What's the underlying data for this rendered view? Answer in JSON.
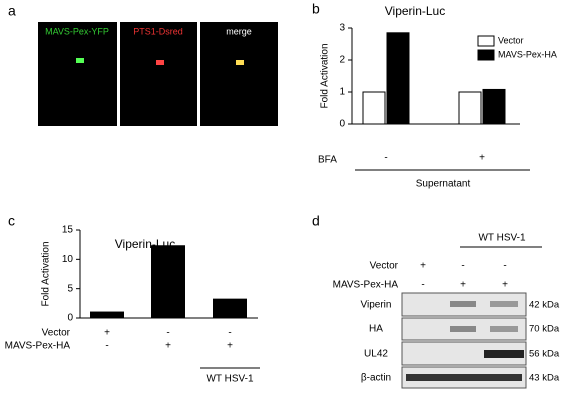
{
  "panel_labels": [
    "a",
    "b",
    "c",
    "d"
  ],
  "microscopy": {
    "channels": [
      "MAVS-Pex-YFP",
      "PTS1-Dsred",
      "merge"
    ]
  },
  "chart_data": [
    {
      "type": "bar",
      "title": "Viperin-Luc",
      "y_label": "Fold Activation",
      "categories": [
        "-",
        "+"
      ],
      "x_row_label": "BFA",
      "x_group_label": "Supernatant",
      "series": [
        {
          "name": "Vector",
          "color": "#ffffff",
          "values": [
            1,
            1
          ]
        },
        {
          "name": "MAVS-Pex-HA",
          "color": "#000000",
          "values": [
            2.85,
            1.08
          ]
        }
      ],
      "ylim": [
        0,
        3
      ],
      "yticks": [
        0,
        1,
        2,
        3
      ],
      "legend": "top-right"
    },
    {
      "type": "bar",
      "title": "Viperin-Luc",
      "y_label": "Fold Activation",
      "categories": [
        null,
        null,
        null
      ],
      "values": [
        1.1,
        12.4,
        3.3
      ],
      "color": "#000000",
      "rows": [
        {
          "name": "Vector",
          "signs": [
            "+",
            "-",
            "-"
          ]
        },
        {
          "name": "MAVS-Pex-HA",
          "signs": [
            "-",
            "+",
            "+"
          ]
        }
      ],
      "group_label": "WT HSV-1",
      "ylim": [
        0,
        15
      ],
      "yticks": [
        0,
        5,
        10,
        15
      ]
    }
  ],
  "western_blot": {
    "group_label": "WT HSV-1",
    "rows": [
      {
        "name": "Vector",
        "signs": [
          "+",
          "-",
          "-"
        ]
      },
      {
        "name": "MAVS-Pex-HA",
        "signs": [
          "-",
          "+",
          "+"
        ]
      }
    ],
    "blots": [
      {
        "name": "Viperin",
        "size": "42 kDa"
      },
      {
        "name": "HA",
        "size": "70 kDa"
      },
      {
        "name": "UL42",
        "size": "56 kDa"
      },
      {
        "name": "β-actin",
        "size": "43 kDa"
      }
    ]
  }
}
